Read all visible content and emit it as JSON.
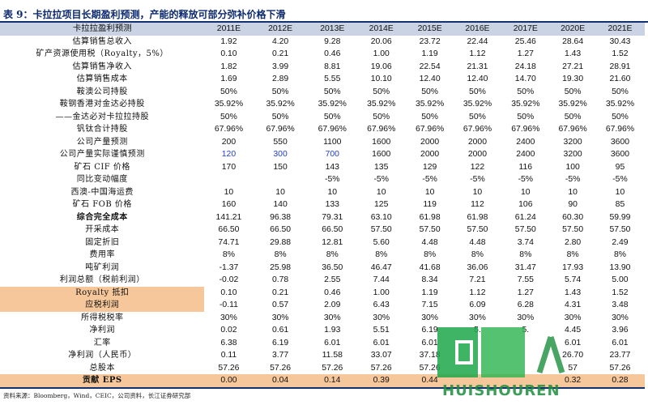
{
  "title": "表 9：卡拉拉项目长期盈利预测，产能的释放可部分弥补价格下滑",
  "table": {
    "header_label": "卡拉拉盈利预测",
    "years": [
      "2011E",
      "2012E",
      "2013E",
      "2014E",
      "2015E",
      "2016E",
      "2017E",
      "2020E",
      "2021E"
    ],
    "rows": [
      {
        "label": "估算销售总收入",
        "values": [
          "1.92",
          "4.20",
          "9.28",
          "20.06",
          "23.72",
          "22.44",
          "25.46",
          "28.64",
          "30.43"
        ]
      },
      {
        "label": "矿产资源使用税（Royalty，5%）",
        "values": [
          "0.10",
          "0.21",
          "0.46",
          "1.00",
          "1.19",
          "1.12",
          "1.27",
          "1.43",
          "1.52"
        ]
      },
      {
        "label": "估算销售净收入",
        "values": [
          "1.82",
          "3.99",
          "8.81",
          "19.06",
          "22.54",
          "21.31",
          "24.18",
          "27.21",
          "28.91"
        ]
      },
      {
        "label": "估算销售成本",
        "values": [
          "1.69",
          "2.89",
          "5.55",
          "10.10",
          "12.40",
          "12.40",
          "14.70",
          "19.30",
          "21.60"
        ]
      },
      {
        "label": "鞍澳公司持股",
        "values": [
          "50%",
          "50%",
          "50%",
          "50%",
          "50%",
          "50%",
          "50%",
          "50%",
          "50%"
        ]
      },
      {
        "label": "鞍钢香港对金达必持股",
        "values": [
          "35.92%",
          "35.92%",
          "35.92%",
          "35.92%",
          "35.92%",
          "35.92%",
          "35.92%",
          "35.92%",
          "35.92%"
        ]
      },
      {
        "label": "——金达必对卡拉拉持股",
        "values": [
          "50%",
          "50%",
          "50%",
          "50%",
          "50%",
          "50%",
          "50%",
          "50%",
          "50%"
        ]
      },
      {
        "label": "钒钛合计持股",
        "values": [
          "67.96%",
          "67.96%",
          "67.96%",
          "67.96%",
          "67.96%",
          "67.96%",
          "67.96%",
          "67.96%",
          "67.96%"
        ]
      },
      {
        "label": "公司产量预测",
        "values": [
          "200",
          "550",
          "1100",
          "1600",
          "2000",
          "2000",
          "2400",
          "3200",
          "3600"
        ]
      },
      {
        "label": "公司产量实际谨慎预测",
        "values": [
          "120",
          "300",
          "700",
          "1600",
          "2000",
          "2000",
          "2400",
          "3200",
          "3600"
        ],
        "blue": [
          0,
          1,
          2
        ]
      },
      {
        "label": "矿石 CIF 价格",
        "values": [
          "170",
          "150",
          "143",
          "135",
          "129",
          "122",
          "116",
          "100",
          "95"
        ]
      },
      {
        "label": "同比变动幅度",
        "values": [
          "",
          "",
          "-5%",
          "-5%",
          "-5%",
          "-5%",
          "-5%",
          "-5%",
          "-5%"
        ]
      },
      {
        "label": "西澳-中国海运费",
        "values": [
          "10",
          "10",
          "10",
          "10",
          "10",
          "10",
          "10",
          "10",
          "10"
        ]
      },
      {
        "label": "矿石 FOB 价格",
        "values": [
          "160",
          "140",
          "133",
          "125",
          "119",
          "112",
          "106",
          "90",
          "85"
        ]
      },
      {
        "label": "综合完全成本",
        "values": [
          "141.21",
          "96.38",
          "79.31",
          "63.10",
          "61.98",
          "61.98",
          "61.24",
          "60.30",
          "59.99"
        ],
        "bold": true
      },
      {
        "label": "开采成本",
        "values": [
          "66.50",
          "66.50",
          "66.50",
          "57.50",
          "57.50",
          "57.50",
          "57.50",
          "57.50",
          "57.50"
        ]
      },
      {
        "label": "固定折旧",
        "values": [
          "74.71",
          "29.88",
          "12.81",
          "5.60",
          "4.48",
          "4.48",
          "3.74",
          "2.80",
          "2.49"
        ]
      },
      {
        "label": "费用率",
        "values": [
          "8%",
          "8%",
          "8%",
          "8%",
          "8%",
          "8%",
          "8%",
          "8%",
          "8%"
        ]
      },
      {
        "label": "吨矿利润",
        "values": [
          "-1.37",
          "25.98",
          "36.50",
          "46.47",
          "41.68",
          "36.06",
          "31.47",
          "17.93",
          "13.90"
        ]
      },
      {
        "label": "利润总额（税前利润）",
        "values": [
          "-0.02",
          "0.78",
          "2.55",
          "7.44",
          "8.34",
          "7.21",
          "7.55",
          "5.74",
          "5.00"
        ]
      },
      {
        "label": "Royalty 抵扣",
        "values": [
          "0.10",
          "0.21",
          "0.46",
          "1.00",
          "1.19",
          "1.12",
          "1.27",
          "1.43",
          "1.52"
        ],
        "hlLabel": true
      },
      {
        "label": "应税利润",
        "values": [
          "-0.11",
          "0.57",
          "2.09",
          "6.43",
          "7.15",
          "6.09",
          "6.28",
          "4.31",
          "3.48"
        ],
        "hlLabel": true
      },
      {
        "label": "所得税税率",
        "values": [
          "30%",
          "30%",
          "30%",
          "30%",
          "30%",
          "30%",
          "30%",
          "30%",
          "30%"
        ]
      },
      {
        "label": "净利润",
        "values": [
          "0.02",
          "0.61",
          "1.93",
          "5.51",
          "6.19",
          "5.",
          "5.",
          "4.45",
          "3.96"
        ]
      },
      {
        "label": "汇率",
        "values": [
          "6.38",
          "6.19",
          "6.01",
          "6.01",
          "6.01",
          "",
          "",
          "6.01",
          "6.01"
        ]
      },
      {
        "label": "净利润（人民币）",
        "values": [
          "0.11",
          "3.77",
          "11.58",
          "33.07",
          "37.18",
          "",
          "",
          "26.70",
          "23.77"
        ]
      },
      {
        "label": "总股本",
        "values": [
          "57.26",
          "57.26",
          "57.26",
          "57.26",
          "57.26",
          "",
          "",
          "57",
          "57.26"
        ]
      },
      {
        "label": "贡献 EPS",
        "values": [
          "0.00",
          "0.04",
          "0.14",
          "0.39",
          "0.44",
          "",
          "",
          "0.32",
          "0.28"
        ],
        "hl": true,
        "bold": true
      }
    ]
  },
  "source": "资料来源：Bloomberg，Wind，CEIC，公司资料，长江证券研究部",
  "watermark": {
    "brand": "HUISHOUREN",
    "mark": "回收人"
  },
  "colors": {
    "header_bg": "#c9d3e4",
    "highlight": "#f6c79a",
    "title": "#0d2a6e",
    "blue_text": "#1f3fd1"
  }
}
